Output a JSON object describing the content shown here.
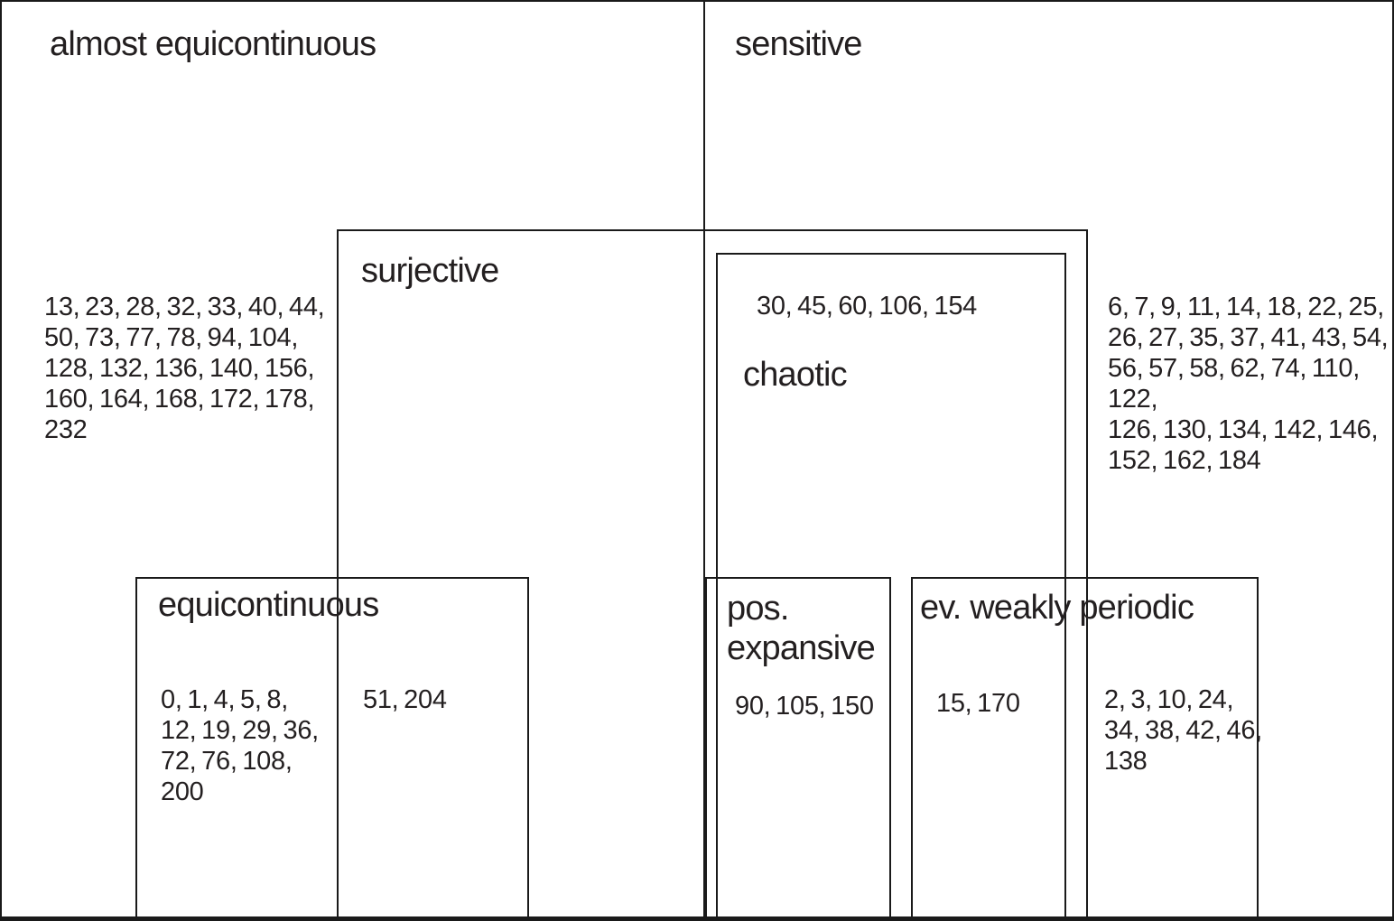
{
  "colors": {
    "background": "#ffffff",
    "line": "#1a1a1a",
    "text": "#231f20"
  },
  "sets": {
    "almost_equicontinuous": {
      "label": "almost equicontinuous"
    },
    "sensitive": {
      "label": "sensitive"
    },
    "surjective": {
      "label": "surjective"
    },
    "chaotic": {
      "label": "chaotic"
    },
    "equicontinuous": {
      "label": "equicontinuous"
    },
    "pos_expansive": {
      "label_lines": [
        "pos.",
        "expansive"
      ]
    },
    "ev_weakly_periodic": {
      "label": "ev. weakly periodic"
    }
  },
  "rule_lists": {
    "almost_equicontinuous_only": {
      "lines": [
        "13, 23, 28, 32, 33, 40, 44,",
        "50, 73, 77, 78, 94, 104,",
        "128, 132, 136, 140, 156,",
        "160, 164, 168, 172, 178,",
        "232"
      ]
    },
    "chaotic": {
      "lines": [
        "30, 45, 60, 106, 154"
      ]
    },
    "sensitive_only": {
      "lines": [
        "6, 7, 9, 11, 14, 18, 22, 25,",
        "26, 27, 35, 37, 41, 43, 54,",
        "56, 57, 58, 62, 74, 110, 122,",
        "126, 130, 134, 142, 146,",
        "152, 162, 184"
      ]
    },
    "equicontinuous_only": {
      "lines": [
        "0, 1, 4, 5, 8,",
        "12, 19, 29, 36,",
        "72, 76, 108,",
        "200"
      ]
    },
    "equicontinuous_surjective": {
      "lines": [
        "51, 204"
      ]
    },
    "pos_expansive": {
      "lines": [
        "90, 105, 150"
      ]
    },
    "ev_weakly_periodic_chaotic": {
      "lines": [
        "15, 170"
      ]
    },
    "ev_weakly_periodic_only": {
      "lines": [
        "2, 3, 10, 24,",
        "34, 38, 42, 46,",
        "138"
      ]
    }
  }
}
